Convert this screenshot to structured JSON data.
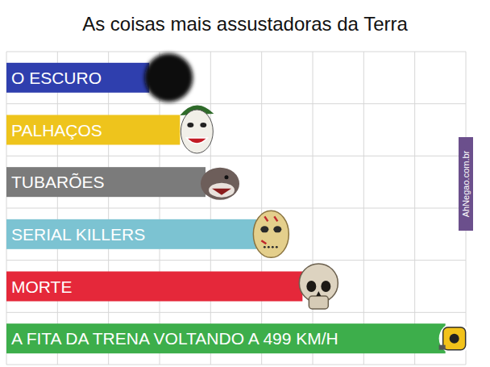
{
  "chart_data": {
    "type": "bar",
    "orientation": "horizontal",
    "title": "As coisas mais assustadoras da Terra",
    "categories": [
      "O ESCURO",
      "PALHAÇOS",
      "TUBARÕES",
      "SERIAL KILLERS",
      "MORTE",
      "A FITA DA TRENA VOLTANDO A 499 KM/H"
    ],
    "values": [
      2.8,
      3.4,
      3.9,
      4.9,
      5.8,
      8.6
    ],
    "colors": [
      "#2f3fae",
      "#eec41c",
      "#7b7b7b",
      "#7cc3d2",
      "#e5283a",
      "#3dae4b"
    ],
    "xlim": [
      0,
      9
    ],
    "xticks": [
      0,
      1,
      2,
      3,
      4,
      5,
      6,
      7,
      8,
      9
    ],
    "grid": true,
    "tick_labels": false,
    "annotations": [
      "AhNegao.com.br"
    ]
  }
}
